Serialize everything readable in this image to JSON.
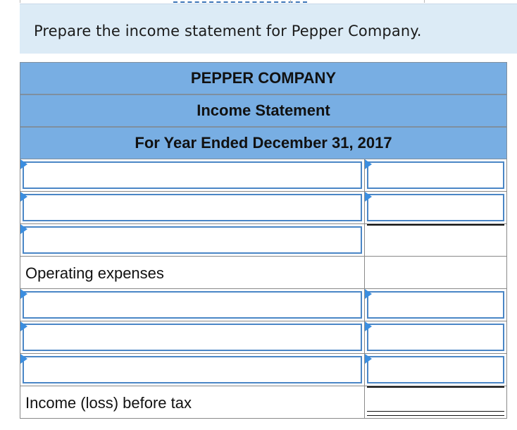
{
  "prompt": {
    "text": "Prepare the income statement for Pepper Company."
  },
  "statement": {
    "company": "PEPPER COMPANY",
    "title": "Income Statement",
    "period": "For Year Ended December 31, 2017",
    "operating_expenses_label": "Operating expenses",
    "income_before_tax_label": "Income (loss) before tax"
  },
  "colors": {
    "header_bg": "#78aee3",
    "prompt_bg": "#dcebf6",
    "input_border": "#4a86c6",
    "marker": "#3b8ee0"
  },
  "icons": {
    "dropdown_marker": "triangle-right-icon"
  }
}
